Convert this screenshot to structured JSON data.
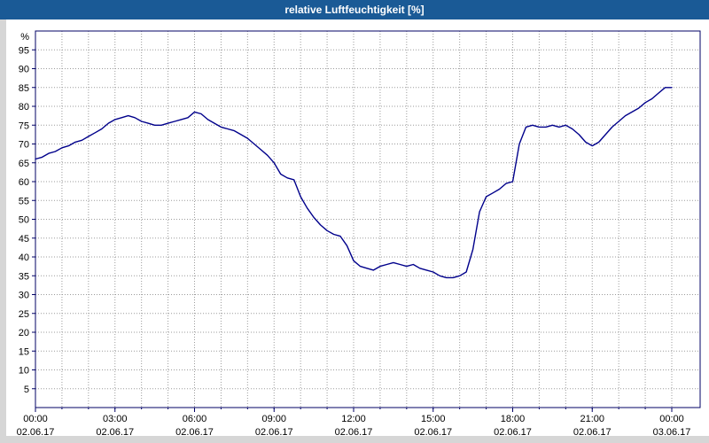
{
  "window": {
    "title": "relative Luftfeuchtigkeit [%]"
  },
  "chart_data": {
    "type": "line",
    "title": "relative Luftfeuchtigkeit [%]",
    "ylabel": "%",
    "xlabel": "",
    "ylim": [
      0,
      100
    ],
    "xlim_hours": [
      0,
      24
    ],
    "legend": "none",
    "y_ticks": [
      5,
      10,
      15,
      20,
      25,
      30,
      35,
      40,
      45,
      50,
      55,
      60,
      65,
      70,
      75,
      80,
      85,
      90,
      95
    ],
    "x_ticks": [
      {
        "hour": 0,
        "time": "00:00",
        "date": "02.06.17"
      },
      {
        "hour": 3,
        "time": "03:00",
        "date": "02.06.17"
      },
      {
        "hour": 6,
        "time": "06:00",
        "date": "02.06.17"
      },
      {
        "hour": 9,
        "time": "09:00",
        "date": "02.06.17"
      },
      {
        "hour": 12,
        "time": "12:00",
        "date": "02.06.17"
      },
      {
        "hour": 15,
        "time": "15:00",
        "date": "02.06.17"
      },
      {
        "hour": 18,
        "time": "18:00",
        "date": "02.06.17"
      },
      {
        "hour": 21,
        "time": "21:00",
        "date": "02.06.17"
      },
      {
        "hour": 24,
        "time": "00:00",
        "date": "03.06.17"
      }
    ],
    "grid": {
      "y_step": 5,
      "x_step_hours": 1,
      "style": "dotted",
      "color": "#9b9b9b"
    },
    "colors": {
      "line": "#00008B",
      "axis": "#000066",
      "titlebar": "#1A5A96",
      "title_text": "#FFFFFF",
      "tick_text": "#000000",
      "plot_background": "#FFFFFF"
    },
    "series": [
      {
        "name": "relative Luftfeuchtigkeit",
        "unit": "%",
        "color": "#00008B",
        "x_hours": [
          0,
          0.25,
          0.5,
          0.75,
          1,
          1.25,
          1.5,
          1.75,
          2,
          2.25,
          2.5,
          2.75,
          3,
          3.25,
          3.5,
          3.75,
          4,
          4.25,
          4.5,
          4.75,
          5,
          5.25,
          5.5,
          5.75,
          6,
          6.25,
          6.5,
          6.75,
          7,
          7.25,
          7.5,
          7.75,
          8,
          8.25,
          8.5,
          8.75,
          9,
          9.25,
          9.5,
          9.75,
          10,
          10.25,
          10.5,
          10.75,
          11,
          11.25,
          11.5,
          11.75,
          12,
          12.25,
          12.5,
          12.75,
          13,
          13.25,
          13.5,
          13.75,
          14,
          14.25,
          14.5,
          14.75,
          15,
          15.25,
          15.5,
          15.75,
          16,
          16.25,
          16.5,
          16.75,
          17,
          17.25,
          17.5,
          17.75,
          18,
          18.25,
          18.5,
          18.75,
          19,
          19.25,
          19.5,
          19.75,
          20,
          20.25,
          20.5,
          20.75,
          21,
          21.25,
          21.5,
          21.75,
          22,
          22.25,
          22.5,
          22.75,
          23,
          23.25,
          23.5,
          23.75,
          24
        ],
        "values": [
          66,
          66.5,
          67.5,
          68,
          69,
          69.5,
          70.5,
          71,
          72,
          73,
          74,
          75.5,
          76.5,
          77,
          77.5,
          77,
          76,
          75.5,
          75,
          75,
          75.5,
          76,
          76.5,
          77,
          78.5,
          78,
          76.5,
          75.5,
          74.5,
          74,
          73.5,
          72.5,
          71.5,
          70,
          68.5,
          67,
          65,
          62,
          61,
          60.5,
          56,
          53,
          50.5,
          48.5,
          47,
          46,
          45.5,
          43,
          39,
          37.5,
          37,
          36.5,
          37.5,
          38,
          38.5,
          38,
          37.5,
          38,
          37,
          36.5,
          36,
          35,
          34.5,
          34.5,
          35,
          36,
          42,
          52,
          56,
          57,
          58,
          59.5,
          60,
          70,
          74.5,
          75,
          74.5,
          74.5,
          75,
          74.5,
          75,
          74,
          72.5,
          70.5,
          69.5,
          70.5,
          72.5,
          74.5,
          76,
          77.5,
          78.5,
          79.5,
          81,
          82,
          83.5,
          85,
          85
        ]
      }
    ]
  }
}
